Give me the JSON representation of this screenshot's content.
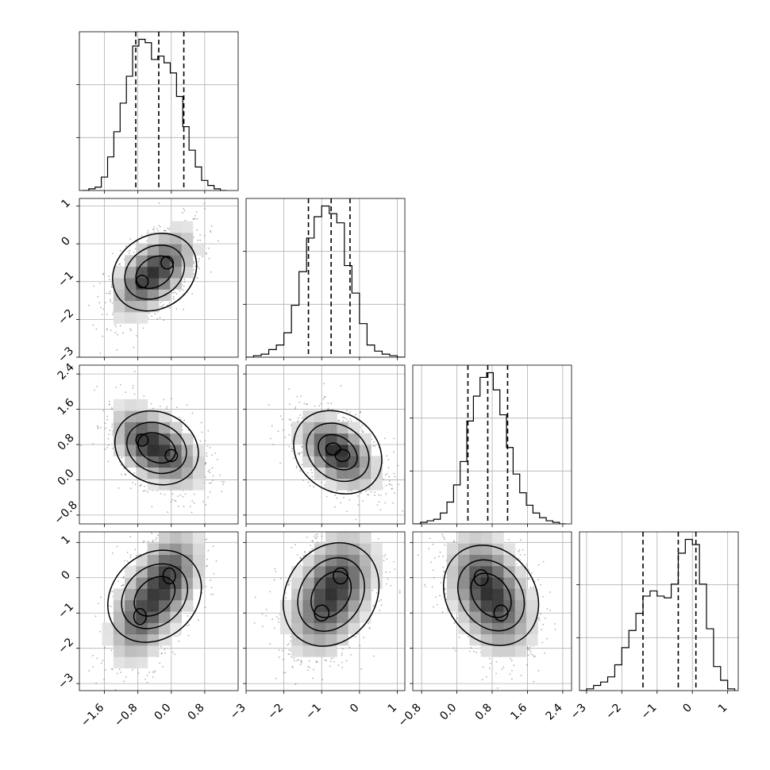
{
  "chart_data": {
    "type": "corner",
    "parameters": [
      {
        "range": [
          -2.2,
          1.6
        ],
        "ticks": [
          -1.6,
          -0.8,
          0.0,
          0.8
        ],
        "tick_labels": [
          "−1.6",
          "−0.8",
          "0.0",
          "0.8"
        ],
        "quantiles": [
          -0.85,
          -0.3,
          0.3
        ],
        "peak": -0.45,
        "sigma": 0.42
      },
      {
        "range": [
          -3.0,
          1.2
        ],
        "ticks": [
          -3,
          -2,
          -1,
          0,
          1
        ],
        "tick_labels": [
          "−3",
          "−2",
          "−1",
          "0",
          "1"
        ],
        "quantiles": [
          -1.35,
          -0.75,
          -0.25
        ],
        "peak": -0.6,
        "sigma": 0.55
      },
      {
        "range": [
          -1.0,
          2.6
        ],
        "ticks": [
          -0.8,
          0.0,
          0.8,
          1.6,
          2.4
        ],
        "tick_labels": [
          "−0.8",
          "0.0",
          "0.8",
          "1.6",
          "2.4"
        ],
        "quantiles": [
          0.25,
          0.7,
          1.15
        ],
        "peak": 0.7,
        "sigma": 0.45
      },
      {
        "range": [
          -3.2,
          1.3
        ],
        "ticks": [
          -3,
          -2,
          -1,
          0,
          1
        ],
        "tick_labels": [
          "−3",
          "−2",
          "−1",
          "0",
          "1"
        ],
        "quantiles": [
          -1.4,
          -0.4,
          0.1
        ],
        "peak": 0.0,
        "sigma": 0.75
      }
    ],
    "histograms": [
      {
        "x": [
          -2.05,
          -1.9,
          -1.75,
          -1.6,
          -1.45,
          -1.3,
          -1.15,
          -1.0,
          -0.85,
          -0.7,
          -0.55,
          -0.4,
          -0.25,
          -0.1,
          0.05,
          0.2,
          0.35,
          0.5,
          0.65,
          0.8,
          0.95,
          1.1,
          1.25
        ],
        "counts": [
          0,
          1,
          2,
          8,
          20,
          35,
          52,
          68,
          86,
          90,
          88,
          78,
          80,
          76,
          70,
          56,
          38,
          24,
          14,
          6,
          3,
          1,
          0
        ]
      },
      {
        "x": [
          -2.9,
          -2.7,
          -2.5,
          -2.3,
          -2.1,
          -1.9,
          -1.7,
          -1.5,
          -1.3,
          -1.1,
          -0.9,
          -0.7,
          -0.5,
          -0.3,
          -0.1,
          0.1,
          0.3,
          0.5,
          0.7,
          0.9,
          1.1
        ],
        "counts": [
          0,
          1,
          2,
          5,
          8,
          16,
          34,
          56,
          78,
          92,
          99,
          94,
          88,
          60,
          42,
          22,
          8,
          4,
          2,
          1,
          0
        ]
      },
      {
        "x": [
          -0.9,
          -0.75,
          -0.6,
          -0.45,
          -0.3,
          -0.15,
          0.0,
          0.15,
          0.3,
          0.45,
          0.6,
          0.75,
          0.9,
          1.05,
          1.2,
          1.35,
          1.5,
          1.65,
          1.8,
          1.95,
          2.1,
          2.25,
          2.4
        ],
        "counts": [
          0,
          1,
          2,
          3,
          7,
          14,
          25,
          40,
          66,
          82,
          94,
          97,
          86,
          70,
          49,
          32,
          20,
          12,
          7,
          4,
          2,
          1,
          0
        ]
      },
      {
        "x": [
          -3.1,
          -2.9,
          -2.7,
          -2.5,
          -2.3,
          -2.1,
          -1.9,
          -1.7,
          -1.5,
          -1.3,
          -1.1,
          -0.9,
          -0.7,
          -0.5,
          -0.3,
          -0.1,
          0.1,
          0.3,
          0.5,
          0.7,
          0.9,
          1.1
        ],
        "counts": [
          0,
          1,
          3,
          5,
          8,
          15,
          25,
          35,
          45,
          55,
          58,
          55,
          54,
          62,
          80,
          88,
          85,
          62,
          36,
          14,
          6,
          1
        ]
      }
    ],
    "pairs": [
      {
        "x": 0,
        "y": 1,
        "corr": 0.45,
        "modes": [
          [
            -0.7,
            -1.0
          ],
          [
            -0.1,
            -0.5
          ]
        ]
      },
      {
        "x": 0,
        "y": 2,
        "corr": -0.35,
        "modes": [
          [
            -0.7,
            0.9
          ],
          [
            0.0,
            0.55
          ]
        ]
      },
      {
        "x": 1,
        "y": 2,
        "corr": -0.45,
        "modes": [
          [
            -0.7,
            0.7
          ],
          [
            -0.45,
            0.55
          ]
        ]
      },
      {
        "x": 0,
        "y": 3,
        "corr": 0.3,
        "modes": [
          [
            -0.05,
            0.05
          ],
          [
            -0.75,
            -1.1
          ]
        ]
      },
      {
        "x": 1,
        "y": 3,
        "corr": 0.2,
        "modes": [
          [
            -0.5,
            0.05
          ],
          [
            -1.0,
            -1.0
          ]
        ]
      },
      {
        "x": 2,
        "y": 3,
        "corr": -0.15,
        "modes": [
          [
            0.55,
            0.0
          ],
          [
            1.0,
            -1.0
          ]
        ]
      }
    ]
  }
}
